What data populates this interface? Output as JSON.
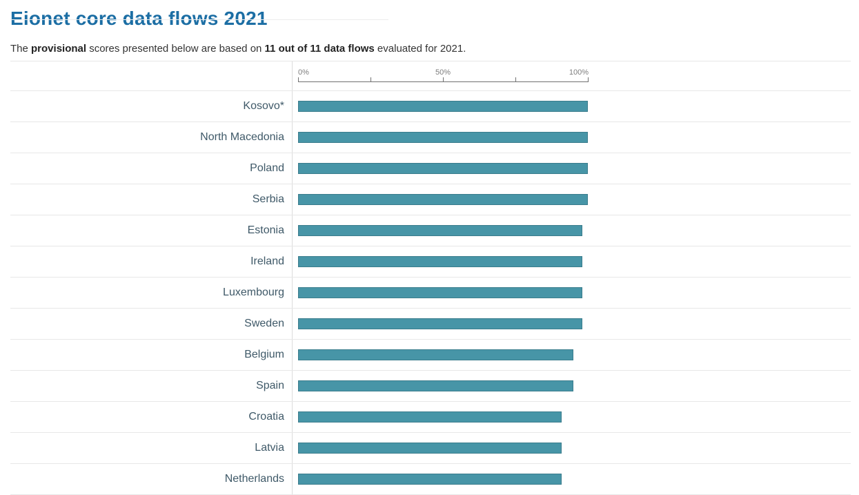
{
  "page": {
    "title": "Eionet core data flows 2021",
    "subtitle": {
      "t1": "The ",
      "b1": "provisional",
      "t2": " scores presented below are based on ",
      "b2": "11 out of 11 data flows",
      "t3": " evaluated for 2021."
    }
  },
  "chart_data": {
    "type": "bar",
    "orientation": "horizontal",
    "title": "Eionet core data flows 2021",
    "categories": [
      "Kosovo*",
      "North Macedonia",
      "Poland",
      "Serbia",
      "Estonia",
      "Ireland",
      "Luxembourg",
      "Sweden",
      "Belgium",
      "Spain",
      "Croatia",
      "Latvia",
      "Netherlands"
    ],
    "values": [
      100,
      100,
      100,
      100,
      98,
      98,
      98,
      98,
      95,
      95,
      91,
      91,
      91
    ],
    "unit": "%",
    "xlim": [
      0,
      100
    ],
    "grid": false,
    "axis": {
      "position": "top",
      "tick_labels": [
        "0%",
        "50%",
        "100%"
      ],
      "tick_positions": [
        0,
        25,
        50,
        75,
        100
      ]
    },
    "colors": {
      "bar_fill": "#4795a7",
      "bar_border": "#3a7c8c",
      "category_label": "#3f5968",
      "title": "#1c6ea4",
      "axis": "#707070",
      "row_separator": "#e7e7e7"
    }
  }
}
